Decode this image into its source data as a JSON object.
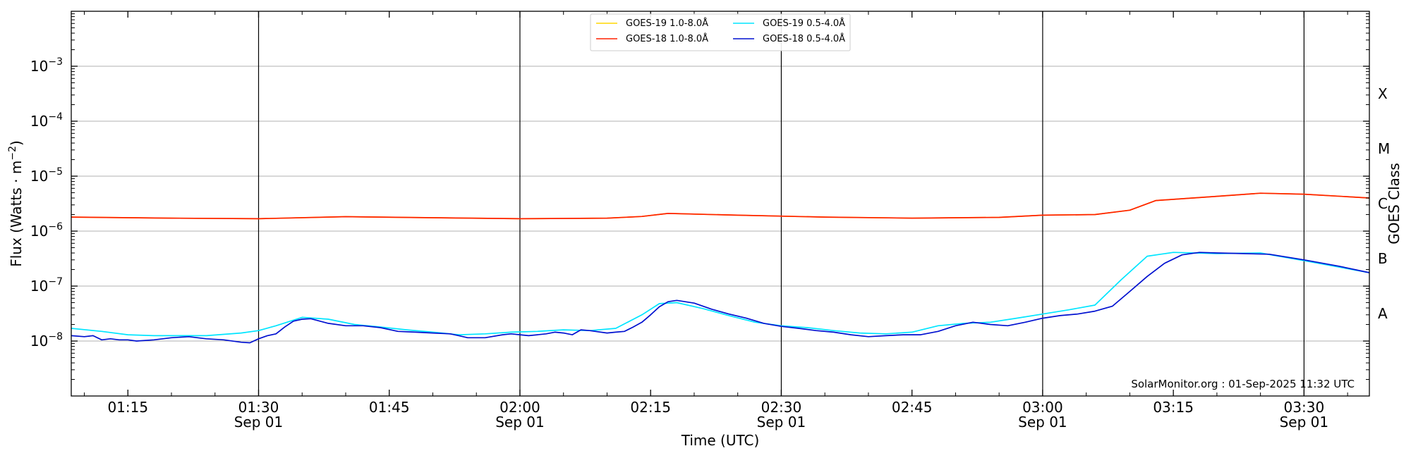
{
  "chart_data": {
    "type": "line",
    "xlabel": "Time (UTC)",
    "ylabel": "Flux (Watts · m",
    "ylabel_sup": "−2",
    "ylabel_close": ")",
    "right_label": "GOES Class",
    "x_range_minutes": [
      68.5,
      217.5
    ],
    "y_scale": "log",
    "ylim": [
      1e-09,
      0.01
    ],
    "grid": "horizontal at each decade",
    "legend_placement": "top-center",
    "x_ticks": [
      {
        "minute": 75,
        "label": "01:15",
        "sub": ""
      },
      {
        "minute": 90,
        "label": "01:30",
        "sub": "Sep 01"
      },
      {
        "minute": 105,
        "label": "01:45",
        "sub": ""
      },
      {
        "minute": 120,
        "label": "02:00",
        "sub": "Sep 01"
      },
      {
        "minute": 135,
        "label": "02:15",
        "sub": ""
      },
      {
        "minute": 150,
        "label": "02:30",
        "sub": "Sep 01"
      },
      {
        "minute": 165,
        "label": "02:45",
        "sub": ""
      },
      {
        "minute": 180,
        "label": "03:00",
        "sub": "Sep 01"
      },
      {
        "minute": 195,
        "label": "03:15",
        "sub": ""
      },
      {
        "minute": 210,
        "label": "03:30",
        "sub": "Sep 01"
      }
    ],
    "vlines_minutes": [
      90,
      120,
      150,
      180,
      210
    ],
    "y_ticks": [
      {
        "exp": -8,
        "label": "10",
        "sup": "−8"
      },
      {
        "exp": -7,
        "label": "10",
        "sup": "−7"
      },
      {
        "exp": -6,
        "label": "10",
        "sup": "−6"
      },
      {
        "exp": -5,
        "label": "10",
        "sup": "−5"
      },
      {
        "exp": -4,
        "label": "10",
        "sup": "−4"
      },
      {
        "exp": -3,
        "label": "10",
        "sup": "−3"
      }
    ],
    "goes_classes": [
      {
        "label": "A",
        "exp": -7.5
      },
      {
        "label": "B",
        "exp": -6.5
      },
      {
        "label": "C",
        "exp": -5.5
      },
      {
        "label": "M",
        "exp": -4.5
      },
      {
        "label": "X",
        "exp": -3.5
      }
    ],
    "legend": [
      {
        "name": "GOES-19 1.0-8.0Å",
        "color": "#ffd700",
        "col": 0,
        "row": 0
      },
      {
        "name": "GOES-18 1.0-8.0Å",
        "color": "#ff2000",
        "col": 0,
        "row": 1
      },
      {
        "name": "GOES-19 0.5-4.0Å",
        "color": "#00e5ff",
        "col": 1,
        "row": 0
      },
      {
        "name": "GOES-18 0.5-4.0Å",
        "color": "#0010d0",
        "col": 1,
        "row": 1
      }
    ],
    "series": [
      {
        "name": "GOES-19 1.0-8.0Å",
        "color": "#ffd700",
        "x": [
          68.5,
          80,
          90,
          100,
          110,
          120,
          130,
          134,
          137,
          145,
          155,
          165,
          175,
          180,
          186,
          190,
          193,
          200,
          205,
          210,
          217.5
        ],
        "y": [
          1.8e-06,
          1.72e-06,
          1.68e-06,
          1.83e-06,
          1.75e-06,
          1.68e-06,
          1.72e-06,
          1.85e-06,
          2.1e-06,
          1.95e-06,
          1.8e-06,
          1.72e-06,
          1.78e-06,
          1.95e-06,
          2e-06,
          2.4e-06,
          3.6e-06,
          4.3e-06,
          4.9e-06,
          4.7e-06,
          4e-06
        ]
      },
      {
        "name": "GOES-18 1.0-8.0Å",
        "color": "#ff2000",
        "x": [
          68.5,
          80,
          90,
          100,
          110,
          120,
          130,
          134,
          137,
          145,
          155,
          165,
          175,
          180,
          186,
          190,
          193,
          200,
          205,
          210,
          217.5
        ],
        "y": [
          1.8e-06,
          1.72e-06,
          1.68e-06,
          1.83e-06,
          1.75e-06,
          1.68e-06,
          1.72e-06,
          1.85e-06,
          2.1e-06,
          1.95e-06,
          1.8e-06,
          1.72e-06,
          1.78e-06,
          1.95e-06,
          2e-06,
          2.4e-06,
          3.6e-06,
          4.3e-06,
          4.9e-06,
          4.7e-06,
          4e-06
        ]
      },
      {
        "name": "GOES-19 0.5-4.0Å",
        "color": "#00e5ff",
        "x": [
          68.5,
          72,
          75,
          78,
          80,
          84,
          88,
          90,
          92,
          95,
          98,
          101,
          104,
          107,
          110,
          113,
          116,
          119,
          122,
          125,
          128,
          131,
          134,
          136,
          138,
          141,
          144,
          147,
          150,
          153,
          156,
          159,
          162,
          165,
          168,
          171,
          174,
          177,
          180,
          183,
          186,
          189,
          192,
          195,
          200,
          205,
          210,
          217.5
        ],
        "y": [
          1.7e-08,
          1.5e-08,
          1.3e-08,
          1.25e-08,
          1.25e-08,
          1.25e-08,
          1.4e-08,
          1.55e-08,
          1.9e-08,
          2.7e-08,
          2.5e-08,
          2e-08,
          1.8e-08,
          1.6e-08,
          1.45e-08,
          1.3e-08,
          1.35e-08,
          1.45e-08,
          1.5e-08,
          1.6e-08,
          1.55e-08,
          1.7e-08,
          3e-08,
          4.8e-08,
          5e-08,
          3.9e-08,
          2.9e-08,
          2.2e-08,
          1.9e-08,
          1.75e-08,
          1.55e-08,
          1.4e-08,
          1.35e-08,
          1.45e-08,
          1.9e-08,
          2.1e-08,
          2.2e-08,
          2.6e-08,
          3.1e-08,
          3.7e-08,
          4.5e-08,
          1.3e-07,
          3.5e-07,
          4.1e-07,
          3.9e-07,
          4e-07,
          2.9e-07,
          1.75e-07
        ]
      },
      {
        "name": "GOES-18 0.5-4.0Å",
        "color": "#0010d0",
        "x": [
          68.5,
          70,
          71,
          72,
          73,
          74,
          75,
          76,
          78,
          80,
          82,
          84,
          86,
          88,
          89,
          90,
          91,
          92,
          93,
          94,
          95,
          96,
          98,
          100,
          102,
          104,
          106,
          108,
          110,
          112,
          113,
          114,
          116,
          118,
          119,
          120,
          121,
          123,
          124,
          125,
          126,
          127,
          128,
          130,
          131,
          132,
          133,
          134,
          135,
          136,
          137,
          138,
          140,
          142,
          144,
          146,
          148,
          150,
          152,
          154,
          156,
          158,
          160,
          162,
          164,
          166,
          168,
          170,
          172,
          174,
          176,
          178,
          180,
          182,
          184,
          186,
          188,
          190,
          192,
          194,
          196,
          198,
          200,
          203,
          206,
          210,
          214,
          217.5
        ],
        "y": [
          1.25e-08,
          1.2e-08,
          1.25e-08,
          1.05e-08,
          1.1e-08,
          1.05e-08,
          1.05e-08,
          1e-08,
          1.05e-08,
          1.15e-08,
          1.2e-08,
          1.1e-08,
          1.05e-08,
          9.5e-09,
          9.3e-09,
          1.1e-08,
          1.25e-08,
          1.35e-08,
          1.8e-08,
          2.3e-08,
          2.5e-08,
          2.55e-08,
          2.1e-08,
          1.9e-08,
          1.9e-08,
          1.75e-08,
          1.5e-08,
          1.45e-08,
          1.4e-08,
          1.35e-08,
          1.25e-08,
          1.15e-08,
          1.15e-08,
          1.3e-08,
          1.35e-08,
          1.3e-08,
          1.25e-08,
          1.35e-08,
          1.45e-08,
          1.4e-08,
          1.3e-08,
          1.6e-08,
          1.55e-08,
          1.4e-08,
          1.45e-08,
          1.5e-08,
          1.8e-08,
          2.2e-08,
          3e-08,
          4.2e-08,
          5.2e-08,
          5.5e-08,
          4.9e-08,
          3.8e-08,
          3.1e-08,
          2.6e-08,
          2.1e-08,
          1.85e-08,
          1.7e-08,
          1.55e-08,
          1.45e-08,
          1.3e-08,
          1.2e-08,
          1.25e-08,
          1.3e-08,
          1.3e-08,
          1.5e-08,
          1.9e-08,
          2.2e-08,
          2e-08,
          1.9e-08,
          2.2e-08,
          2.6e-08,
          2.9e-08,
          3.1e-08,
          3.5e-08,
          4.3e-08,
          8e-08,
          1.5e-07,
          2.6e-07,
          3.7e-07,
          4.1e-07,
          4e-07,
          3.9e-07,
          3.8e-07,
          3e-07,
          2.3e-07,
          1.75e-07
        ]
      }
    ],
    "footer_text": "SolarMonitor.org : 01-Sep-2025 11:32 UTC"
  }
}
